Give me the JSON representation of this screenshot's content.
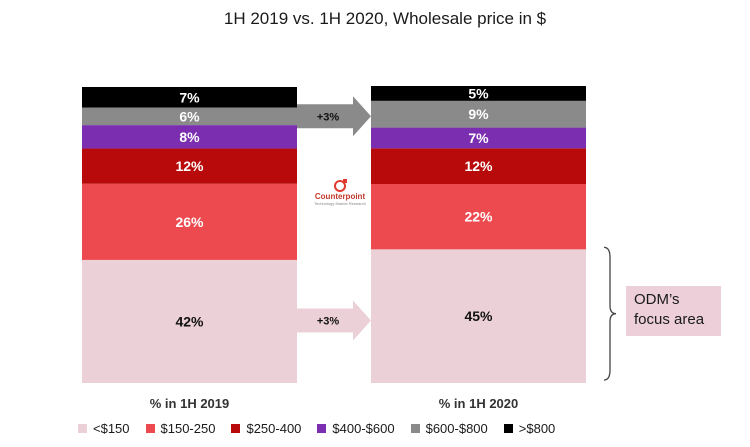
{
  "chart_data": {
    "type": "bar",
    "stacked": true,
    "normalized": true,
    "title": "1H 2019 vs. 1H 2020, Wholesale price in $",
    "categories": [
      "% in 1H 2019",
      "% in 1H 2020"
    ],
    "series": [
      {
        "name": "<$150",
        "color": "#ecd0d8",
        "label_color": "#111111",
        "values": [
          42,
          45
        ],
        "labels": [
          "42%",
          "45%"
        ]
      },
      {
        "name": "$150-250",
        "color": "#ec4a4f",
        "label_color": "#ffffff",
        "values": [
          26,
          22
        ],
        "labels": [
          "26%",
          "22%"
        ]
      },
      {
        "name": "$250-400",
        "color": "#b80a0a",
        "label_color": "#ffffff",
        "values": [
          12,
          12
        ],
        "labels": [
          "12%",
          "12%"
        ]
      },
      {
        "name": "$400-$600",
        "color": "#7b2fb0",
        "label_color": "#ffffff",
        "values": [
          8,
          7
        ],
        "labels": [
          "8%",
          "7%"
        ]
      },
      {
        "name": "$600-$800",
        "color": "#8a8a8a",
        "label_color": "#ffffff",
        "values": [
          6,
          9
        ],
        "labels": [
          "6%",
          "9%"
        ]
      },
      {
        "name": ">$800",
        "color": "#000000",
        "label_color": "#ffffff",
        "values": [
          7,
          5
        ],
        "labels": [
          "7%",
          "5%"
        ]
      }
    ],
    "annotations": [
      {
        "text": "+3%",
        "from_series": "$600-$800"
      },
      {
        "text": "+3%",
        "from_series": "<$150"
      }
    ],
    "legend_position": "bottom",
    "grid": false
  },
  "callout": {
    "text": "ODM’s focus area"
  },
  "logo": {
    "name": "Counterpoint",
    "subtitle": "Technology Market Research"
  }
}
